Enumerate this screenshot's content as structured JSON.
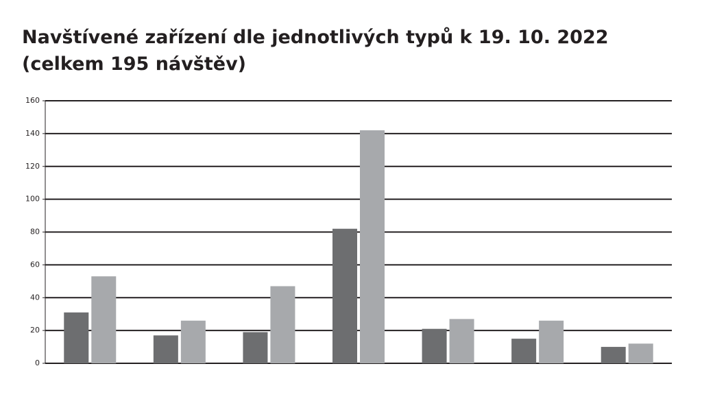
{
  "chart_data": {
    "type": "bar",
    "title": [
      "Navštívené zařízení dle jednotlivých typů k 19. 10. 2022",
      "(celkem 195 návštěv)"
    ],
    "categories": [
      null,
      null,
      null,
      null,
      null,
      null,
      null
    ],
    "series": [
      {
        "color": "#6d6e70",
        "values": [
          31,
          17,
          19,
          82,
          21,
          15,
          10
        ]
      },
      {
        "color": "#a7a9ac",
        "values": [
          53,
          26,
          47,
          142,
          27,
          26,
          12
        ]
      }
    ],
    "ylim": [
      0,
      160
    ],
    "yticks": [
      0,
      20,
      40,
      60,
      80,
      100,
      120,
      140,
      160
    ],
    "grid": true
  }
}
